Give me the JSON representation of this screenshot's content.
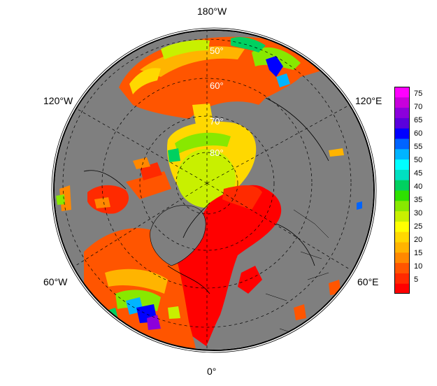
{
  "map": {
    "projection": "north polar stereographic",
    "longitude_labels": [
      "180°W",
      "120°W",
      "120°E",
      "60°W",
      "60°E",
      "0°"
    ],
    "latitude_labels": [
      "50°",
      "60°",
      "70°",
      "80°"
    ]
  },
  "colorbar": {
    "ticks": [
      "75",
      "70",
      "65",
      "60",
      "55",
      "50",
      "45",
      "40",
      "35",
      "30",
      "25",
      "20",
      "15",
      "10",
      "5"
    ],
    "range": [
      0,
      78
    ],
    "colors": [
      "#ff0000",
      "#ff2a00",
      "#ff5500",
      "#ff8800",
      "#ffb400",
      "#ffd800",
      "#ffff00",
      "#c8f000",
      "#88e800",
      "#2ee000",
      "#00d060",
      "#00e0c0",
      "#00ffff",
      "#00b4ff",
      "#0064ff",
      "#0000ff",
      "#5a00dc",
      "#8c00dc",
      "#c800dc",
      "#ff00ff"
    ]
  },
  "colors": {
    "land": "#7f7f7f",
    "coast": "#000000",
    "ocean_background": "#ffffff"
  }
}
